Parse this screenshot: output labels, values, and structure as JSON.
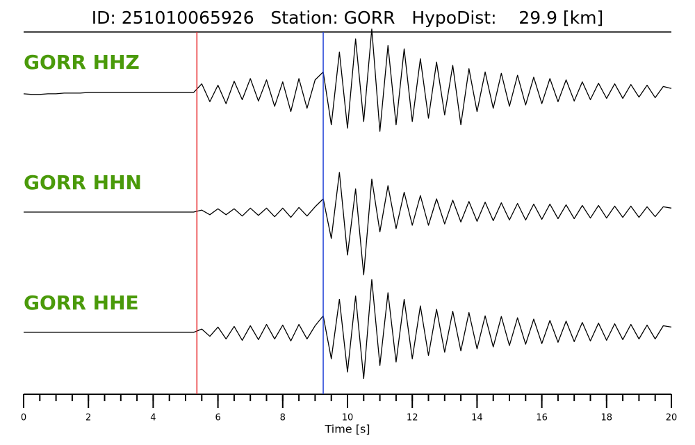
{
  "chart_data": {
    "type": "line",
    "title": "ID: 251010065926   Station: GORR   HypoDist:    29.9 [km]",
    "xlabel": "Time [s]",
    "xlim": [
      0,
      20
    ],
    "xticks": [
      0,
      2,
      4,
      6,
      8,
      10,
      12,
      14,
      16,
      18,
      20
    ],
    "xticks_minor": [
      0,
      0.5,
      1,
      1.5,
      2,
      2.5,
      3,
      3.5,
      4,
      4.5,
      5,
      5.5,
      6,
      6.5,
      7,
      7.5,
      8,
      8.5,
      9,
      9.5,
      10,
      10.5,
      11,
      11.5,
      12,
      12.5,
      13,
      13.5,
      14,
      14.5,
      15,
      15.5,
      16,
      16.5,
      17,
      17.5,
      18,
      18.5,
      19,
      19.5,
      20
    ],
    "ylim": [
      -1,
      1
    ],
    "markers": [
      {
        "x": 5.35,
        "color": "#e8262a"
      },
      {
        "x": 9.25,
        "color": "#1f3fd6"
      }
    ],
    "x": [
      0,
      0.25,
      0.5,
      0.75,
      1,
      1.25,
      1.5,
      1.75,
      2,
      2.25,
      2.5,
      2.75,
      3,
      3.25,
      3.5,
      3.75,
      4,
      4.25,
      4.5,
      4.75,
      5,
      5.25,
      5.5,
      5.75,
      6,
      6.25,
      6.5,
      6.75,
      7,
      7.25,
      7.5,
      7.75,
      8,
      8.25,
      8.5,
      8.75,
      9,
      9.25,
      9.5,
      9.75,
      10,
      10.25,
      10.5,
      10.75,
      11,
      11.25,
      11.5,
      11.75,
      12,
      12.25,
      12.5,
      12.75,
      13,
      13.25,
      13.5,
      13.75,
      14,
      14.25,
      14.5,
      14.75,
      15,
      15.25,
      15.5,
      15.75,
      16,
      16.25,
      16.5,
      16.75,
      17,
      17.25,
      17.5,
      17.75,
      18,
      18.25,
      18.5,
      18.75,
      19,
      19.25,
      19.5,
      19.75,
      20
    ],
    "series": [
      {
        "name": "GORR HHZ",
        "color": "#000000",
        "values": [
          -0.03,
          -0.04,
          -0.04,
          -0.03,
          -0.03,
          -0.02,
          -0.02,
          -0.02,
          -0.01,
          -0.01,
          -0.01,
          -0.01,
          -0.01,
          -0.01,
          -0.01,
          -0.01,
          -0.01,
          -0.01,
          -0.01,
          -0.01,
          -0.01,
          -0.01,
          0.12,
          -0.15,
          0.1,
          -0.18,
          0.16,
          -0.12,
          0.2,
          -0.14,
          0.18,
          -0.22,
          0.15,
          -0.3,
          0.2,
          -0.25,
          0.18,
          0.3,
          -0.5,
          0.6,
          -0.55,
          0.8,
          -0.45,
          0.95,
          -0.6,
          0.7,
          -0.5,
          0.65,
          -0.45,
          0.5,
          -0.4,
          0.45,
          -0.35,
          0.4,
          -0.5,
          0.35,
          -0.3,
          0.3,
          -0.25,
          0.28,
          -0.22,
          0.25,
          -0.2,
          0.22,
          -0.18,
          0.2,
          -0.15,
          0.18,
          -0.14,
          0.15,
          -0.12,
          0.13,
          -0.1,
          0.12,
          -0.1,
          0.11,
          -0.08,
          0.1,
          -0.09,
          0.08,
          0.05
        ]
      },
      {
        "name": "GORR HHN",
        "color": "#000000",
        "values": [
          0,
          0,
          0,
          0,
          0,
          0,
          0,
          0,
          0,
          0,
          0,
          0,
          0,
          0,
          0,
          0,
          0,
          0,
          0,
          0,
          0,
          0,
          0.03,
          -0.04,
          0.05,
          -0.04,
          0.05,
          -0.06,
          0.06,
          -0.05,
          0.06,
          -0.07,
          0.06,
          -0.08,
          0.07,
          -0.06,
          0.08,
          0.2,
          -0.4,
          0.6,
          -0.65,
          0.35,
          -0.95,
          0.5,
          -0.3,
          0.4,
          -0.25,
          0.3,
          -0.2,
          0.25,
          -0.2,
          0.2,
          -0.18,
          0.18,
          -0.15,
          0.16,
          -0.14,
          0.15,
          -0.13,
          0.14,
          -0.12,
          0.13,
          -0.12,
          0.12,
          -0.11,
          0.12,
          -0.1,
          0.11,
          -0.1,
          0.1,
          -0.09,
          0.1,
          -0.09,
          0.09,
          -0.08,
          0.09,
          -0.08,
          0.08,
          -0.07,
          0.08,
          0.06
        ]
      },
      {
        "name": "GORR HHE",
        "color": "#000000",
        "values": [
          0,
          0,
          0,
          0,
          0,
          0,
          0,
          0,
          0,
          0,
          0,
          0,
          0,
          0,
          0,
          0,
          0,
          0,
          0,
          0,
          0,
          0,
          0.05,
          -0.06,
          0.08,
          -0.1,
          0.09,
          -0.12,
          0.1,
          -0.11,
          0.12,
          -0.1,
          0.11,
          -0.13,
          0.12,
          -0.1,
          0.1,
          0.25,
          -0.4,
          0.5,
          -0.6,
          0.55,
          -0.7,
          0.8,
          -0.5,
          0.6,
          -0.45,
          0.5,
          -0.4,
          0.4,
          -0.35,
          0.35,
          -0.3,
          0.32,
          -0.28,
          0.3,
          -0.25,
          0.25,
          -0.22,
          0.24,
          -0.2,
          0.22,
          -0.18,
          0.2,
          -0.17,
          0.18,
          -0.15,
          0.17,
          -0.14,
          0.15,
          -0.13,
          0.14,
          -0.12,
          0.13,
          -0.11,
          0.12,
          -0.1,
          0.11,
          -0.1,
          0.1,
          0.08
        ]
      }
    ],
    "label_color": "#4a9a0a"
  }
}
